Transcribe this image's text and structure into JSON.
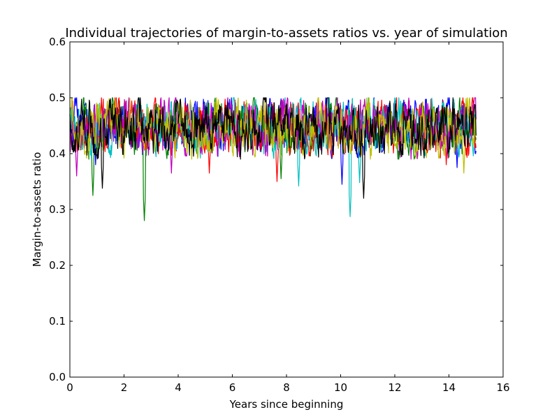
{
  "chart_data": {
    "type": "line",
    "title": "Individual trajectories of margin-to-assets ratios vs. year of simulation",
    "xlabel": "Years since beginning",
    "ylabel": "Margin-to-assets ratio",
    "xlim": [
      0,
      16
    ],
    "ylim": [
      0.0,
      0.6
    ],
    "x_ticks": [
      0,
      2,
      4,
      6,
      8,
      10,
      12,
      14,
      16
    ],
    "x_tick_labels": [
      "0",
      "2",
      "4",
      "6",
      "8",
      "10",
      "12",
      "14",
      "16"
    ],
    "y_ticks": [
      0.0,
      0.1,
      0.2,
      0.3,
      0.4,
      0.5,
      0.6
    ],
    "y_tick_labels": [
      "0.0",
      "0.1",
      "0.2",
      "0.3",
      "0.4",
      "0.5",
      "0.6"
    ],
    "grid": false,
    "legend": "none",
    "x_range_of_data": [
      0,
      15
    ],
    "value_cap": 0.5,
    "typical_band": [
      0.39,
      0.5
    ],
    "colors": [
      "#0000ff",
      "#008000",
      "#ff0000",
      "#00bfbf",
      "#bf00bf",
      "#bfbf00",
      "#000000"
    ],
    "series": [
      {
        "color": "#0000ff",
        "dips": [
          [
            10.05,
            0.345
          ],
          [
            0.95,
            0.38
          ],
          [
            14.3,
            0.375
          ]
        ]
      },
      {
        "color": "#008000",
        "dips": [
          [
            2.75,
            0.28
          ],
          [
            0.85,
            0.325
          ],
          [
            7.8,
            0.355
          ]
        ]
      },
      {
        "color": "#ff0000",
        "dips": [
          [
            7.65,
            0.35
          ],
          [
            5.15,
            0.365
          ],
          [
            13.9,
            0.38
          ]
        ]
      },
      {
        "color": "#00bfbf",
        "dips": [
          [
            10.35,
            0.287
          ],
          [
            8.45,
            0.342
          ],
          [
            10.7,
            0.348
          ]
        ]
      },
      {
        "color": "#bf00bf",
        "dips": [
          [
            3.75,
            0.365
          ],
          [
            0.25,
            0.36
          ],
          [
            12.6,
            0.39
          ]
        ]
      },
      {
        "color": "#bfbf00",
        "dips": [
          [
            14.55,
            0.365
          ],
          [
            4.5,
            0.39
          ],
          [
            11.1,
            0.39
          ]
        ]
      },
      {
        "color": "#000000",
        "dips": [
          [
            10.85,
            0.32
          ],
          [
            1.2,
            0.338
          ],
          [
            6.3,
            0.39
          ]
        ]
      }
    ]
  }
}
